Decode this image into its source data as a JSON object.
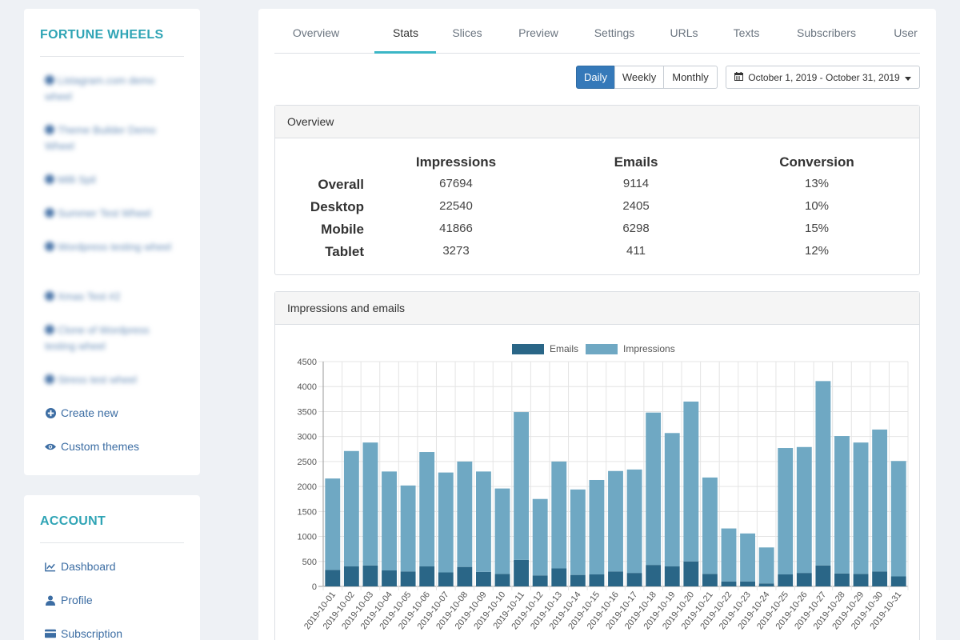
{
  "sidebar": {
    "title": "FORTUNE WHEELS",
    "wheels": [
      {
        "label": "Listagram.com demo wheel"
      },
      {
        "label": "Theme Builder Demo Wheel"
      },
      {
        "label": "Milli Spil"
      },
      {
        "label": "Summer Test Wheel"
      },
      {
        "label": "Wordpress testing wheel"
      },
      {
        "label": "Xmas Test #2"
      },
      {
        "label": "Clone of Wordpress testing wheel"
      },
      {
        "label": "Stress test wheel"
      }
    ],
    "create_new": "Create new",
    "custom_themes": "Custom themes",
    "account_title": "ACCOUNT",
    "account_links": [
      {
        "label": "Dashboard",
        "icon": "chart-line-icon"
      },
      {
        "label": "Profile",
        "icon": "user-icon"
      },
      {
        "label": "Subscription",
        "icon": "credit-card-icon"
      }
    ]
  },
  "tabs": [
    "Overview",
    "Stats",
    "Slices",
    "Preview",
    "Settings",
    "URLs",
    "Texts",
    "Subscribers",
    "User"
  ],
  "active_tab": "Stats",
  "period_buttons": [
    "Daily",
    "Weekly",
    "Monthly"
  ],
  "active_period": "Daily",
  "date_range": "October 1, 2019 - October 31, 2019",
  "overview": {
    "title": "Overview",
    "columns": [
      "Impressions",
      "Emails",
      "Conversion"
    ],
    "rows": [
      {
        "label": "Overall",
        "impressions": "67694",
        "emails": "9114",
        "conversion": "13%"
      },
      {
        "label": "Desktop",
        "impressions": "22540",
        "emails": "2405",
        "conversion": "10%"
      },
      {
        "label": "Mobile",
        "impressions": "41866",
        "emails": "6298",
        "conversion": "15%"
      },
      {
        "label": "Tablet",
        "impressions": "3273",
        "emails": "411",
        "conversion": "12%"
      }
    ]
  },
  "chart_panel_title": "Impressions and emails",
  "chart_data": {
    "type": "bar",
    "stacked": true,
    "title": "",
    "categories": [
      "2019-10-01",
      "2019-10-02",
      "2019-10-03",
      "2019-10-04",
      "2019-10-05",
      "2019-10-06",
      "2019-10-07",
      "2019-10-08",
      "2019-10-09",
      "2019-10-10",
      "2019-10-11",
      "2019-10-12",
      "2019-10-13",
      "2019-10-14",
      "2019-10-15",
      "2019-10-16",
      "2019-10-17",
      "2019-10-18",
      "2019-10-19",
      "2019-10-20",
      "2019-10-21",
      "2019-10-22",
      "2019-10-23",
      "2019-10-24",
      "2019-10-25",
      "2019-10-26",
      "2019-10-27",
      "2019-10-28",
      "2019-10-29",
      "2019-10-30",
      "2019-10-31"
    ],
    "series": [
      {
        "name": "Emails",
        "color": "#2a6687",
        "values": [
          330,
          400,
          420,
          320,
          300,
          400,
          280,
          390,
          290,
          250,
          530,
          220,
          360,
          230,
          240,
          300,
          270,
          430,
          400,
          500,
          250,
          100,
          100,
          60,
          240,
          270,
          420,
          260,
          250,
          300,
          200
        ]
      },
      {
        "name": "Impressions",
        "color": "#6fa8c3",
        "values": [
          1830,
          2310,
          2460,
          1980,
          1720,
          2290,
          2000,
          2110,
          2010,
          1710,
          2960,
          1530,
          2140,
          1710,
          1890,
          2010,
          2070,
          3050,
          2670,
          3200,
          1930,
          1060,
          960,
          720,
          2530,
          2520,
          3690,
          2750,
          2630,
          2840,
          2310
        ]
      }
    ],
    "ylim": [
      0,
      4500
    ],
    "yticks": [
      0,
      500,
      1000,
      1500,
      2000,
      2500,
      3000,
      3500,
      4000,
      4500
    ],
    "grid": true,
    "legend_position": "top"
  }
}
